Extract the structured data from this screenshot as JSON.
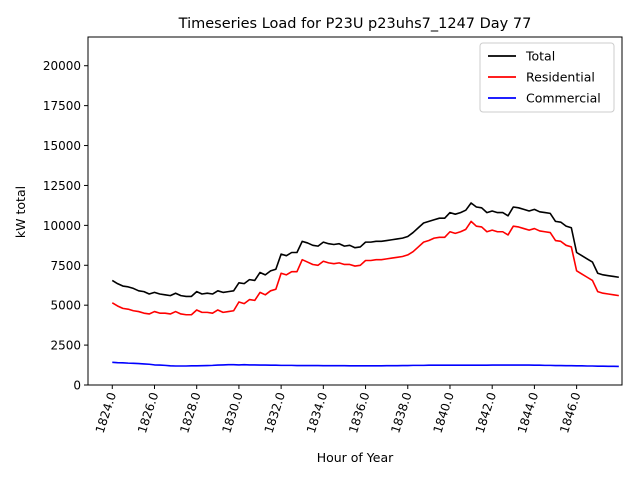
{
  "chart_data": {
    "type": "line",
    "title": "Timeseries Load for P23U p23uhs7_1247  Day 77",
    "xlabel": "Hour of Year",
    "ylabel": "kW total",
    "xlim": [
      1822.85,
      1848.15
    ],
    "ylim": [
      0,
      21800
    ],
    "x_ticks": [
      1824,
      1826,
      1828,
      1830,
      1832,
      1834,
      1836,
      1838,
      1840,
      1842,
      1844,
      1846
    ],
    "x_tick_labels": [
      "1824.0",
      "1826.0",
      "1828.0",
      "1830.0",
      "1832.0",
      "1834.0",
      "1836.0",
      "1838.0",
      "1840.0",
      "1842.0",
      "1844.0",
      "1846.0"
    ],
    "y_ticks": [
      0,
      2500,
      5000,
      7500,
      10000,
      12500,
      15000,
      17500,
      20000
    ],
    "y_tick_labels": [
      "0",
      "2500",
      "5000",
      "7500",
      "10000",
      "12500",
      "15000",
      "17500",
      "20000"
    ],
    "grid": false,
    "legend_position": "top-right",
    "x": [
      1824.0,
      1824.25,
      1824.5,
      1824.75,
      1825.0,
      1825.25,
      1825.5,
      1825.75,
      1826.0,
      1826.25,
      1826.5,
      1826.75,
      1827.0,
      1827.25,
      1827.5,
      1827.75,
      1828.0,
      1828.25,
      1828.5,
      1828.75,
      1829.0,
      1829.25,
      1829.5,
      1829.75,
      1830.0,
      1830.25,
      1830.5,
      1830.75,
      1831.0,
      1831.25,
      1831.5,
      1831.75,
      1832.0,
      1832.25,
      1832.5,
      1832.75,
      1833.0,
      1833.25,
      1833.5,
      1833.75,
      1834.0,
      1834.25,
      1834.5,
      1834.75,
      1835.0,
      1835.25,
      1835.5,
      1835.75,
      1836.0,
      1836.25,
      1836.5,
      1836.75,
      1837.0,
      1837.25,
      1837.5,
      1837.75,
      1838.0,
      1838.25,
      1838.5,
      1838.75,
      1839.0,
      1839.25,
      1839.5,
      1839.75,
      1840.0,
      1840.25,
      1840.5,
      1840.75,
      1841.0,
      1841.25,
      1841.5,
      1841.75,
      1842.0,
      1842.25,
      1842.5,
      1842.75,
      1843.0,
      1843.25,
      1843.5,
      1843.75,
      1844.0,
      1844.25,
      1844.5,
      1844.75,
      1845.0,
      1845.25,
      1845.5,
      1845.75,
      1846.0,
      1846.25,
      1846.5,
      1846.75,
      1847.0,
      1847.25,
      1847.5,
      1847.75,
      1848.0
    ],
    "series": [
      {
        "name": "Total",
        "color": "#000000",
        "values": [
          6550,
          6350,
          6200,
          6150,
          6050,
          5900,
          5850,
          5700,
          5800,
          5700,
          5650,
          5600,
          5750,
          5600,
          5550,
          5550,
          5850,
          5700,
          5750,
          5700,
          5900,
          5800,
          5850,
          5900,
          6400,
          6350,
          6600,
          6550,
          7050,
          6900,
          7150,
          7250,
          8200,
          8100,
          8300,
          8300,
          9000,
          8900,
          8750,
          8700,
          8950,
          8850,
          8800,
          8850,
          8700,
          8750,
          8600,
          8650,
          8950,
          8950,
          9000,
          9000,
          9050,
          9100,
          9150,
          9200,
          9300,
          9550,
          9850,
          10150,
          10250,
          10350,
          10450,
          10450,
          10800,
          10700,
          10800,
          10950,
          11400,
          11150,
          11100,
          10800,
          10900,
          10800,
          10800,
          10600,
          11150,
          11100,
          11000,
          10900,
          11000,
          10850,
          10800,
          10750,
          10250,
          10200,
          9950,
          9850,
          8300,
          8100,
          7900,
          7700,
          7000,
          6900,
          6850,
          6800,
          6750
        ]
      },
      {
        "name": "Residential",
        "color": "#ff0000",
        "values": [
          5150,
          4950,
          4800,
          4750,
          4650,
          4600,
          4500,
          4450,
          4600,
          4500,
          4500,
          4450,
          4600,
          4450,
          4400,
          4400,
          4700,
          4550,
          4550,
          4500,
          4700,
          4550,
          4600,
          4650,
          5200,
          5100,
          5350,
          5300,
          5800,
          5650,
          5900,
          6000,
          7000,
          6900,
          7100,
          7100,
          7850,
          7700,
          7550,
          7500,
          7750,
          7650,
          7600,
          7650,
          7550,
          7550,
          7450,
          7500,
          7800,
          7800,
          7850,
          7850,
          7900,
          7950,
          8000,
          8050,
          8150,
          8350,
          8650,
          8950,
          9050,
          9200,
          9250,
          9250,
          9600,
          9500,
          9600,
          9750,
          10250,
          9950,
          9900,
          9600,
          9700,
          9600,
          9600,
          9400,
          9950,
          9900,
          9800,
          9700,
          9800,
          9650,
          9600,
          9550,
          9050,
          9000,
          8750,
          8650,
          7150,
          6950,
          6750,
          6550,
          5850,
          5750,
          5700,
          5650,
          5600
        ]
      },
      {
        "name": "Commercial",
        "color": "#0000ff",
        "values": [
          1420,
          1400,
          1390,
          1370,
          1360,
          1340,
          1320,
          1300,
          1260,
          1250,
          1230,
          1200,
          1190,
          1190,
          1190,
          1200,
          1200,
          1210,
          1220,
          1230,
          1250,
          1260,
          1270,
          1270,
          1260,
          1270,
          1260,
          1260,
          1250,
          1250,
          1240,
          1240,
          1230,
          1230,
          1230,
          1220,
          1220,
          1220,
          1220,
          1220,
          1210,
          1210,
          1210,
          1210,
          1210,
          1200,
          1200,
          1200,
          1200,
          1200,
          1200,
          1200,
          1210,
          1210,
          1210,
          1220,
          1220,
          1230,
          1230,
          1230,
          1240,
          1240,
          1240,
          1240,
          1240,
          1240,
          1240,
          1240,
          1240,
          1240,
          1240,
          1240,
          1250,
          1250,
          1250,
          1250,
          1250,
          1250,
          1250,
          1250,
          1240,
          1240,
          1230,
          1230,
          1220,
          1220,
          1210,
          1210,
          1200,
          1200,
          1190,
          1190,
          1180,
          1180,
          1170,
          1170,
          1160
        ]
      }
    ]
  }
}
